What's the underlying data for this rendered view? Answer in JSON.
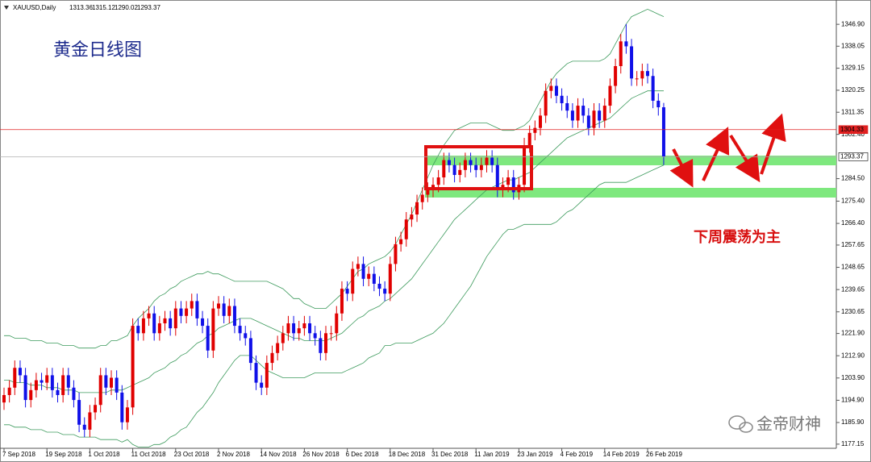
{
  "chart_data": {
    "type": "candlestick",
    "symbol": "XAUUSD,Daily",
    "title": "黄金日线图",
    "note": "下周震荡为主",
    "watermark": "金帝财神",
    "up_color": "#e00000",
    "down_color": "#1010e8",
    "categories": [
      "7 Sep 2018",
      null,
      null,
      null,
      null,
      null,
      null,
      null,
      "19 Sep 2018",
      null,
      null,
      null,
      null,
      null,
      null,
      null,
      "1 Oct 2018",
      null,
      null,
      null,
      null,
      null,
      null,
      null,
      "11 Oct 2018",
      null,
      null,
      null,
      null,
      null,
      null,
      null,
      "23 Oct 2018",
      null,
      null,
      null,
      null,
      null,
      null,
      null,
      "2 Nov 2018",
      null,
      null,
      null,
      null,
      null,
      null,
      null,
      "14 Nov 2018",
      null,
      null,
      null,
      null,
      null,
      null,
      null,
      "26 Nov 2018",
      null,
      null,
      null,
      null,
      null,
      null,
      null,
      "6 Dec 2018",
      null,
      null,
      null,
      null,
      null,
      null,
      null,
      "18 Dec 2018",
      null,
      null,
      null,
      null,
      null,
      null,
      null,
      "31 Dec 2018",
      null,
      null,
      null,
      null,
      null,
      null,
      null,
      "11 Jan 2019",
      null,
      null,
      null,
      null,
      null,
      null,
      null,
      "23 Jan 2019",
      null,
      null,
      null,
      null,
      null,
      null,
      null,
      "4 Feb 2019",
      null,
      null,
      null,
      null,
      null,
      null,
      null,
      "14 Feb 2019",
      null,
      null,
      null,
      null,
      null,
      null,
      null,
      "26 Feb 2019",
      null,
      null,
      null
    ],
    "open": [
      1194,
      1197,
      1200,
      1208,
      1205,
      1195,
      1199,
      1203,
      1202,
      1205,
      1199,
      1197,
      1205,
      1200,
      1195,
      1185,
      1183,
      1190,
      1193,
      1205,
      1200,
      1204,
      1198,
      1186,
      1192,
      1225,
      1222,
      1228,
      1230,
      1222,
      1226,
      1228,
      1224,
      1232,
      1229,
      1232,
      1235,
      1228,
      1225,
      1215,
      1232,
      1234,
      1229,
      1233,
      1225,
      1222,
      1220,
      1210,
      1202,
      1200,
      1210,
      1214,
      1218,
      1222,
      1226,
      1222,
      1224,
      1226,
      1222,
      1220,
      1214,
      1222,
      1222,
      1230,
      1240,
      1238,
      1248,
      1250,
      1244,
      1246,
      1242,
      1240,
      1238,
      1250,
      1258,
      1260,
      1268,
      1270,
      1275,
      1278,
      1280,
      1282,
      1285,
      1292,
      1290,
      1286,
      1288,
      1292,
      1290,
      1288,
      1290,
      1293,
      1290,
      1280,
      1282,
      1285,
      1279,
      1282,
      1298,
      1303,
      1305,
      1310,
      1320,
      1322,
      1318,
      1315,
      1312,
      1308,
      1314,
      1310,
      1305,
      1312,
      1308,
      1314,
      1322,
      1330,
      1340,
      1338,
      1325,
      1325,
      1328,
      1326,
      1316,
      1313.36
    ],
    "high": [
      1200,
      1203,
      1211,
      1211,
      1208,
      1202,
      1206,
      1206,
      1208,
      1208,
      1202,
      1208,
      1208,
      1203,
      1198,
      1188,
      1193,
      1196,
      1208,
      1208,
      1207,
      1207,
      1201,
      1195,
      1228,
      1228,
      1231,
      1233,
      1233,
      1229,
      1231,
      1231,
      1235,
      1235,
      1235,
      1238,
      1238,
      1231,
      1228,
      1235,
      1237,
      1237,
      1236,
      1236,
      1228,
      1225,
      1223,
      1213,
      1205,
      1213,
      1217,
      1221,
      1225,
      1229,
      1229,
      1227,
      1229,
      1229,
      1225,
      1223,
      1225,
      1225,
      1233,
      1243,
      1243,
      1251,
      1253,
      1253,
      1249,
      1249,
      1245,
      1243,
      1253,
      1261,
      1263,
      1271,
      1273,
      1278,
      1281,
      1283,
      1285,
      1288,
      1295,
      1295,
      1293,
      1291,
      1295,
      1295,
      1293,
      1293,
      1296,
      1296,
      1293,
      1285,
      1288,
      1288,
      1285,
      1301,
      1306,
      1308,
      1313,
      1323,
      1325,
      1325,
      1321,
      1318,
      1315,
      1317,
      1317,
      1313,
      1315,
      1315,
      1317,
      1325,
      1333,
      1343,
      1347,
      1341,
      1328,
      1331,
      1331,
      1329,
      1319,
      1315.12
    ],
    "low": [
      1191,
      1194,
      1197,
      1202,
      1192,
      1192,
      1196,
      1199,
      1199,
      1196,
      1194,
      1194,
      1197,
      1192,
      1182,
      1180,
      1180,
      1187,
      1190,
      1197,
      1197,
      1195,
      1183,
      1183,
      1189,
      1219,
      1219,
      1225,
      1219,
      1219,
      1223,
      1221,
      1221,
      1226,
      1226,
      1229,
      1225,
      1222,
      1212,
      1212,
      1229,
      1226,
      1226,
      1222,
      1219,
      1217,
      1207,
      1199,
      1197,
      1197,
      1207,
      1211,
      1215,
      1219,
      1219,
      1219,
      1221,
      1219,
      1217,
      1211,
      1211,
      1219,
      1219,
      1227,
      1235,
      1235,
      1245,
      1241,
      1241,
      1239,
      1237,
      1235,
      1235,
      1247,
      1255,
      1257,
      1265,
      1267,
      1272,
      1275,
      1277,
      1279,
      1282,
      1287,
      1283,
      1283,
      1285,
      1287,
      1285,
      1285,
      1287,
      1287,
      1277,
      1277,
      1279,
      1276,
      1276,
      1279,
      1295,
      1300,
      1302,
      1307,
      1317,
      1315,
      1312,
      1309,
      1305,
      1305,
      1307,
      1302,
      1302,
      1305,
      1305,
      1311,
      1319,
      1327,
      1335,
      1322,
      1322,
      1322,
      1323,
      1313,
      1310,
      1290.02
    ],
    "close": [
      1197,
      1200,
      1208,
      1205,
      1195,
      1199,
      1203,
      1202,
      1205,
      1199,
      1197,
      1205,
      1200,
      1195,
      1185,
      1183,
      1190,
      1193,
      1205,
      1200,
      1204,
      1198,
      1186,
      1192,
      1225,
      1222,
      1228,
      1230,
      1222,
      1226,
      1228,
      1224,
      1232,
      1229,
      1232,
      1235,
      1228,
      1225,
      1215,
      1232,
      1234,
      1229,
      1233,
      1225,
      1222,
      1220,
      1210,
      1202,
      1200,
      1210,
      1214,
      1218,
      1222,
      1226,
      1222,
      1224,
      1226,
      1222,
      1220,
      1214,
      1222,
      1222,
      1230,
      1240,
      1238,
      1248,
      1250,
      1244,
      1246,
      1242,
      1240,
      1238,
      1250,
      1258,
      1260,
      1268,
      1270,
      1275,
      1278,
      1280,
      1282,
      1285,
      1292,
      1290,
      1286,
      1288,
      1292,
      1290,
      1288,
      1290,
      1293,
      1290,
      1280,
      1282,
      1285,
      1279,
      1282,
      1298,
      1303,
      1305,
      1310,
      1320,
      1322,
      1318,
      1315,
      1312,
      1308,
      1314,
      1310,
      1305,
      1312,
      1308,
      1314,
      1322,
      1330,
      1340,
      1338,
      1325,
      1325,
      1328,
      1326,
      1316,
      1313.36,
      1293.37
    ],
    "bands": {
      "color": "#3c9a5c",
      "upper": [
        1221,
        1221,
        1220,
        1220,
        1220,
        1219,
        1219,
        1219,
        1218,
        1218,
        1218,
        1217,
        1217,
        1217,
        1216,
        1216,
        1216,
        1216,
        1217,
        1217,
        1219,
        1219,
        1220,
        1221,
        1225,
        1228,
        1230,
        1232,
        1235,
        1237,
        1238,
        1240,
        1241,
        1243,
        1244,
        1245,
        1246,
        1246,
        1247,
        1246,
        1246,
        1245,
        1244,
        1243,
        1243,
        1243,
        1243,
        1243,
        1243,
        1243,
        1242,
        1241,
        1240,
        1238,
        1236,
        1236,
        1234,
        1233,
        1232,
        1232,
        1232,
        1234,
        1236,
        1238,
        1241,
        1244,
        1247,
        1248,
        1250,
        1251,
        1252,
        1253,
        1255,
        1258,
        1262,
        1266,
        1270,
        1275,
        1280,
        1285,
        1290,
        1294,
        1298,
        1301,
        1304,
        1305,
        1306,
        1307,
        1307,
        1307,
        1307,
        1306,
        1305,
        1304,
        1304,
        1304,
        1305,
        1306,
        1308,
        1312,
        1316,
        1320,
        1324,
        1327,
        1329,
        1331,
        1332,
        1332,
        1332,
        1332,
        1332,
        1332,
        1333,
        1335,
        1339,
        1343,
        1347,
        1350,
        1351,
        1352,
        1353,
        1352,
        1351,
        1350
      ],
      "middle": [
        1203,
        1203,
        1202,
        1202,
        1202,
        1201,
        1201,
        1201,
        1200,
        1200,
        1200,
        1199,
        1199,
        1199,
        1198,
        1198,
        1198,
        1198,
        1198,
        1198,
        1199,
        1199,
        1199,
        1200,
        1201,
        1202,
        1203,
        1204,
        1206,
        1207,
        1208,
        1210,
        1211,
        1213,
        1214,
        1216,
        1218,
        1219,
        1221,
        1222,
        1224,
        1225,
        1226,
        1227,
        1228,
        1228,
        1228,
        1227,
        1226,
        1225,
        1224,
        1223,
        1222,
        1221,
        1220,
        1220,
        1219,
        1219,
        1219,
        1219,
        1219,
        1220,
        1221,
        1222,
        1224,
        1226,
        1228,
        1229,
        1231,
        1232,
        1233,
        1235,
        1236,
        1238,
        1240,
        1242,
        1244,
        1247,
        1250,
        1253,
        1256,
        1259,
        1262,
        1265,
        1268,
        1270,
        1272,
        1274,
        1276,
        1278,
        1280,
        1281,
        1282,
        1283,
        1284,
        1284,
        1285,
        1286,
        1287,
        1289,
        1291,
        1293,
        1295,
        1297,
        1299,
        1301,
        1302,
        1303,
        1304,
        1305,
        1306,
        1307,
        1308,
        1309,
        1311,
        1313,
        1315,
        1317,
        1318,
        1319,
        1320,
        1320,
        1320,
        1320
      ],
      "lower": [
        1185,
        1185,
        1184,
        1184,
        1184,
        1183,
        1183,
        1183,
        1182,
        1182,
        1182,
        1181,
        1181,
        1181,
        1180,
        1180,
        1180,
        1180,
        1179,
        1179,
        1179,
        1179,
        1178,
        1179,
        1177,
        1176,
        1176,
        1176,
        1177,
        1177,
        1178,
        1180,
        1181,
        1183,
        1184,
        1187,
        1190,
        1192,
        1195,
        1198,
        1202,
        1205,
        1208,
        1211,
        1213,
        1213,
        1213,
        1211,
        1209,
        1207,
        1206,
        1205,
        1204,
        1204,
        1204,
        1204,
        1204,
        1205,
        1206,
        1206,
        1206,
        1206,
        1206,
        1206,
        1207,
        1208,
        1209,
        1210,
        1212,
        1213,
        1214,
        1217,
        1217,
        1218,
        1218,
        1218,
        1218,
        1219,
        1220,
        1221,
        1222,
        1224,
        1226,
        1229,
        1232,
        1235,
        1238,
        1241,
        1245,
        1249,
        1253,
        1256,
        1259,
        1262,
        1264,
        1264,
        1265,
        1266,
        1266,
        1266,
        1266,
        1266,
        1266,
        1267,
        1269,
        1271,
        1272,
        1274,
        1276,
        1278,
        1280,
        1282,
        1283,
        1283,
        1283,
        1283,
        1283,
        1284,
        1285,
        1286,
        1287,
        1288,
        1289,
        1290
      ]
    },
    "ylim": [
      1175.8,
      1355.1
    ],
    "yticks": [
      {
        "value": 1346.9,
        "label": "1346.90"
      },
      1338.05,
      1329.15,
      1320.25,
      1311.35,
      {
        "value": 1302.4,
        "label": "1302.40"
      },
      {
        "value": 1284.5,
        "label": "1284.50"
      },
      {
        "value": 1275.4,
        "label": "1275.40"
      },
      {
        "value": 1266.4,
        "label": "1266.40"
      },
      1257.65,
      1248.65,
      1239.65,
      1230.65,
      {
        "value": 1221.9,
        "label": "1221.90"
      },
      {
        "value": 1212.9,
        "label": "1212.90"
      },
      {
        "value": 1203.9,
        "label": "1203.90"
      },
      {
        "value": 1194.9,
        "label": "1194.90"
      },
      {
        "value": 1185.9,
        "label": "1185.90"
      },
      1177.15
    ],
    "markers": [
      {
        "value": 1304.33,
        "color": "#e02020",
        "text_color": "#ffffff"
      },
      {
        "value": 1293.37,
        "color": "#b0b0b0",
        "text_color": "#000000"
      }
    ],
    "grid": false
  }
}
